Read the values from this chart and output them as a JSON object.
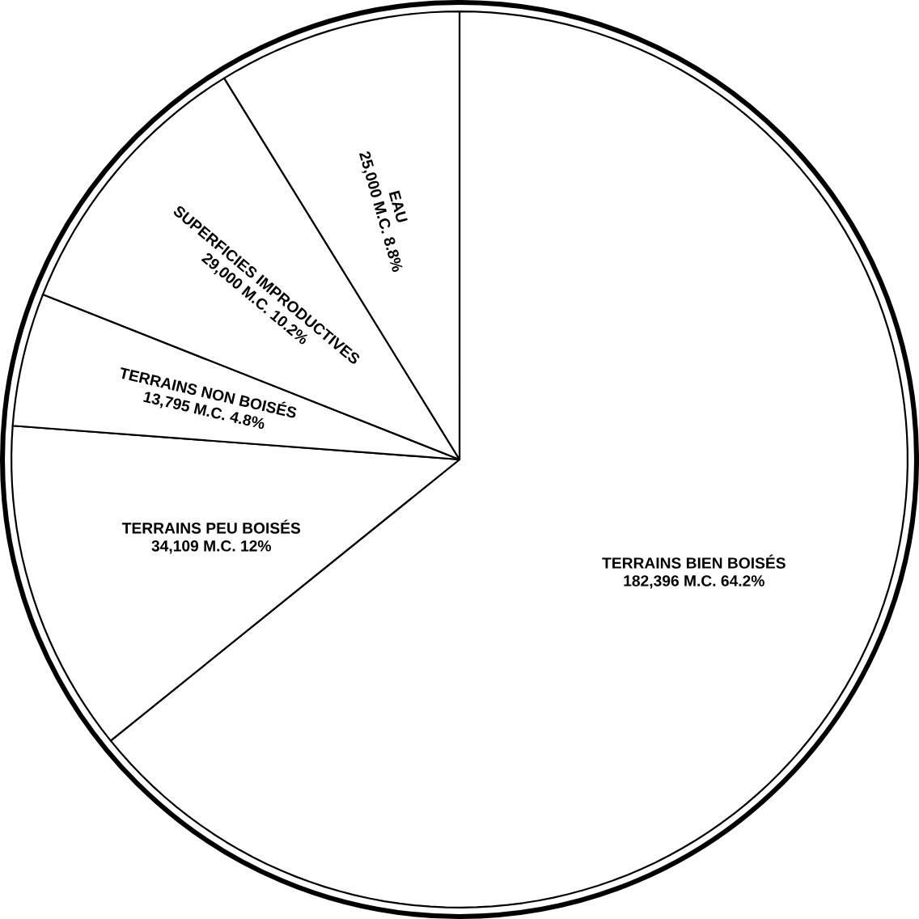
{
  "chart_data": {
    "type": "pie",
    "categories": [
      "TERRAINS BIEN BOISÉS",
      "TERRAINS PEU BOISÉS",
      "TERRAINS NON BOISÉS",
      "SUPERFICIES IMPRODUCTIVES",
      "EAU"
    ],
    "values": [
      64.2,
      12,
      4.8,
      10.2,
      8.8
    ],
    "value_labels": [
      "182,396 M.C. 64.2%",
      "34,109 M.C. 12%",
      "13,795 M.C. 4.8%",
      "29,000 M.C. 10.2%",
      "25,000 M.C. 8.8%"
    ],
    "colors": [
      "#ffffff",
      "#ffffff",
      "#ffffff",
      "#ffffff",
      "#ffffff"
    ]
  }
}
